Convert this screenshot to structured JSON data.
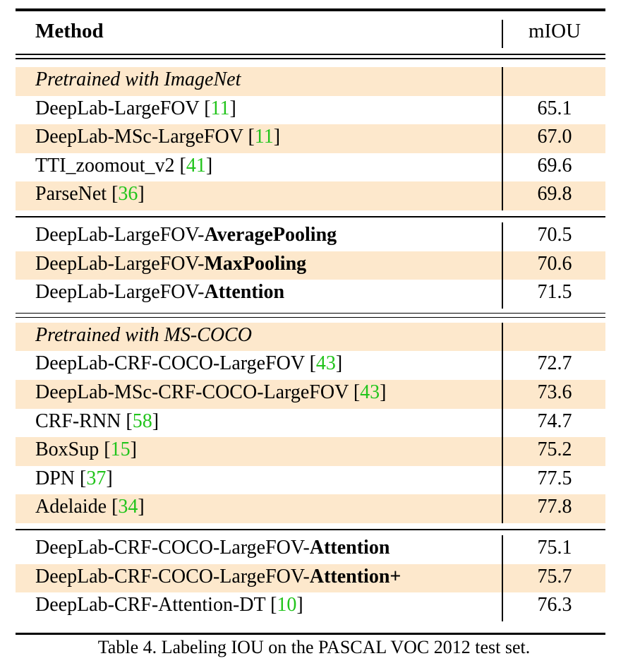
{
  "header": {
    "method": "Method",
    "miou": "mIOU"
  },
  "groups": [
    {
      "title": "Pretrained with ImageNet",
      "blocks": [
        [
          {
            "name": "DeepLab-LargeFOV",
            "suffix": "",
            "cite": "11",
            "miou": "65.1"
          },
          {
            "name": "DeepLab-MSc-LargeFOV",
            "suffix": "",
            "cite": "11",
            "miou": "67.0"
          },
          {
            "name": "TTI_zoomout_v2",
            "suffix": "",
            "cite": "41",
            "miou": "69.6"
          },
          {
            "name": "ParseNet",
            "suffix": "",
            "cite": "36",
            "miou": "69.8"
          }
        ],
        [
          {
            "name": "DeepLab-LargeFOV-",
            "suffix": "AveragePooling",
            "cite": "",
            "miou": "70.5"
          },
          {
            "name": "DeepLab-LargeFOV-",
            "suffix": "MaxPooling",
            "cite": "",
            "miou": "70.6"
          },
          {
            "name": "DeepLab-LargeFOV-",
            "suffix": "Attention",
            "cite": "",
            "miou": "71.5"
          }
        ]
      ]
    },
    {
      "title": "Pretrained with MS-COCO",
      "blocks": [
        [
          {
            "name": "DeepLab-CRF-COCO-LargeFOV",
            "suffix": "",
            "cite": "43",
            "miou": "72.7"
          },
          {
            "name": "DeepLab-MSc-CRF-COCO-LargeFOV",
            "suffix": "",
            "cite": "43",
            "miou": "73.6"
          },
          {
            "name": "CRF-RNN",
            "suffix": "",
            "cite": "58",
            "miou": "74.7"
          },
          {
            "name": "BoxSup",
            "suffix": "",
            "cite": "15",
            "miou": "75.2"
          },
          {
            "name": "DPN",
            "suffix": "",
            "cite": "37",
            "miou": "77.5"
          },
          {
            "name": "Adelaide",
            "suffix": "",
            "cite": "34",
            "miou": "77.8"
          }
        ],
        [
          {
            "name": "DeepLab-CRF-COCO-LargeFOV-",
            "suffix": "Attention",
            "cite": "",
            "miou": "75.1"
          },
          {
            "name": "DeepLab-CRF-COCO-LargeFOV-",
            "suffix": "Attention+",
            "cite": "",
            "miou": "75.7"
          },
          {
            "name": "DeepLab-CRF-Attention-DT",
            "suffix": "",
            "cite": "10",
            "miou": "76.3"
          }
        ]
      ]
    }
  ],
  "caption": "Table 4. Labeling IOU on the PASCAL VOC 2012 test set."
}
